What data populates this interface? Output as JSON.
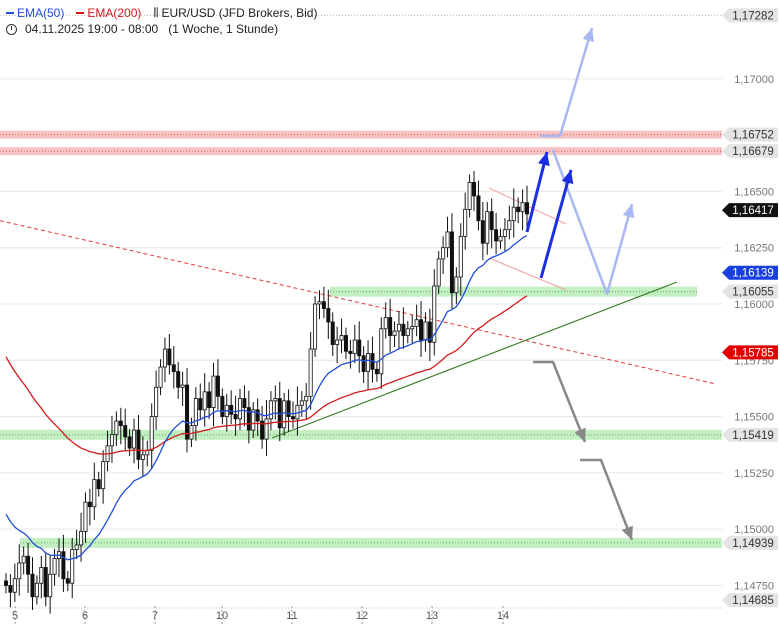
{
  "legend": {
    "ema50": "EMA(50)",
    "ema200": "EMA(200)",
    "instrument": "EUR/USD (JFD Brokers, Bid)",
    "timeframe": "04.11.2025 19:00 - 08:00",
    "period": "(1 Woche, 1 Stunde)",
    "ema50_color": "#1f4fd8",
    "ema200_color": "#d11a1a"
  },
  "chart_data": {
    "type": "candlestick",
    "ylim": [
      1.1465,
      1.1735
    ],
    "y_ticks": [
      "1,14750",
      "1,15000",
      "1,15250",
      "1,15500",
      "1,15750",
      "1,16000",
      "1,16250",
      "1,16500",
      "1,17000"
    ],
    "x_ticks": [
      "5",
      "6",
      "7",
      "10",
      "11",
      "12",
      "13",
      "14"
    ],
    "price_badges": [
      {
        "label": "1,17282",
        "value": 1.17282,
        "style": "level"
      },
      {
        "label": "1,16752",
        "value": 1.16752,
        "style": "level"
      },
      {
        "label": "1,16679",
        "value": 1.16679,
        "style": "level"
      },
      {
        "label": "1,16417",
        "value": 1.16417,
        "style": "last"
      },
      {
        "label": "1,16139",
        "value": 1.16139,
        "style": "ema50"
      },
      {
        "label": "1,16055",
        "value": 1.16055,
        "style": "level"
      },
      {
        "label": "1,15785",
        "value": 1.15785,
        "style": "ema200"
      },
      {
        "label": "1,15419",
        "value": 1.15419,
        "style": "level"
      },
      {
        "label": "1,14939",
        "value": 1.14939,
        "style": "level"
      },
      {
        "label": "1,14685",
        "value": 1.14685,
        "style": "level"
      }
    ],
    "resistance_zones": [
      1.16752,
      1.16679
    ],
    "support_zones": [
      1.16055,
      1.15419,
      1.14939
    ],
    "series_close": [
      1.1475,
      1.1472,
      1.1478,
      1.1485,
      1.1488,
      1.148,
      1.147,
      1.1476,
      1.1483,
      1.147,
      1.148,
      1.1487,
      1.149,
      1.1478,
      1.1476,
      1.1491,
      1.1493,
      1.1499,
      1.1512,
      1.151,
      1.1522,
      1.1518,
      1.153,
      1.1537,
      1.1542,
      1.1548,
      1.1546,
      1.1541,
      1.1536,
      1.1544,
      1.1531,
      1.1533,
      1.1535,
      1.155,
      1.1563,
      1.1572,
      1.158,
      1.1573,
      1.157,
      1.1563,
      1.1564,
      1.154,
      1.1546,
      1.1558,
      1.1553,
      1.1561,
      1.1554,
      1.1568,
      1.1559,
      1.155,
      1.1555,
      1.1551,
      1.1549,
      1.1558,
      1.1554,
      1.1544,
      1.1553,
      1.1548,
      1.154,
      1.1549,
      1.1557,
      1.1558,
      1.1545,
      1.1557,
      1.155,
      1.1549,
      1.1555,
      1.1557,
      1.1559,
      1.158,
      1.16,
      1.1601,
      1.1598,
      1.1592,
      1.1582,
      1.1584,
      1.1586,
      1.1579,
      1.1578,
      1.1584,
      1.1577,
      1.157,
      1.1578,
      1.1571,
      1.1569,
      1.1589,
      1.1594,
      1.1586,
      1.1588,
      1.1591,
      1.1586,
      1.1589,
      1.159,
      1.1593,
      1.1584,
      1.1592,
      1.1583,
      1.1608,
      1.162,
      1.1625,
      1.1632,
      1.1605,
      1.1612,
      1.163,
      1.1642,
      1.1654,
      1.1648,
      1.1637,
      1.1627,
      1.1641,
      1.1633,
      1.1628,
      1.163,
      1.1633,
      1.1637,
      1.1643,
      1.1641,
      1.1645,
      1.164
    ],
    "ema50_start_index": 0,
    "ema200_start_index": 0,
    "drawings": {
      "trend_line_up": {
        "from": [
          39,
          1.154
        ],
        "to": [
          113,
          1.1619
        ]
      },
      "trend_line_down_dashed": {
        "from": [
          0,
          1.1637
        ],
        "to": [
          122,
          1.1562
        ]
      },
      "channel_upper": {
        "from": [
          104,
          1.1655
        ],
        "to": [
          121,
          1.1631
        ]
      },
      "channel_lower": {
        "from": [
          104,
          1.1626
        ],
        "to": [
          121,
          1.1609
        ]
      }
    },
    "scenario_bullish_dark": [
      [
        1.164
      ],
      [
        1.1679
      ],
      [
        1.1617
      ],
      [
        1.1675
      ]
    ],
    "scenario_bullish_light": [
      [
        1.167
      ],
      [
        1.167
      ],
      [
        1.1728
      ]
    ],
    "scenario_bullish_light2": [
      [
        1.167
      ],
      [
        1.1605
      ],
      [
        1.1652
      ]
    ],
    "scenario_bearish_1": [
      [
        1.1582
      ],
      [
        1.1582
      ],
      [
        1.1542
      ]
    ],
    "scenario_bearish_2": [
      [
        1.1529
      ],
      [
        1.1529
      ],
      [
        1.1493
      ]
    ]
  }
}
